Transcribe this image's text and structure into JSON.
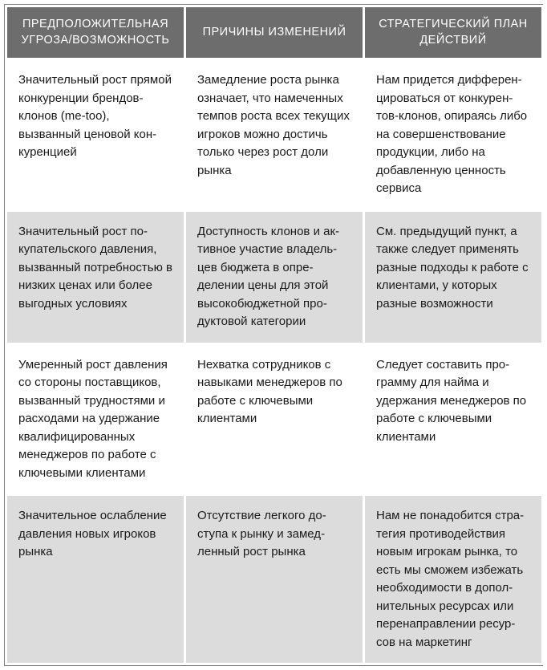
{
  "table": {
    "header_bg": "#6d6d6d",
    "header_fg": "#ffffff",
    "row_alt_bg": "#dcdcdc",
    "row_bg": "#ffffff",
    "text_color": "#1a1a1a",
    "border_color": "#ffffff",
    "header_fontsize": 14.5,
    "cell_fontsize": 15,
    "columns": [
      "ПРЕДПОЛОЖИТЕЛЬНАЯ УГРОЗА/ВОЗМОЖНОСТЬ",
      "ПРИЧИНЫ ИЗМЕНЕНИЙ",
      "СТРАТЕГИЧЕСКИЙ ПЛАН ДЕЙСТВИЙ"
    ],
    "rows": [
      {
        "bg": "white",
        "cells": [
          "Значительный рост пря­мой конкуренции брен­дов-клонов (me-too), вызванный ценовой кон­куренцией",
          "Замедление роста рынка означает, что намеченных темпов роста всех теку­щих игроков можно до­стичь только через рост доли рынка",
          "Нам придется дифферен­цироваться от конкурен­тов-клонов, опираясь либо на совершенствова­ние продукции, либо на добавленную ценность сервиса"
        ]
      },
      {
        "bg": "gray",
        "cells": [
          "Значительный рост по­купательского давления, вызванный потребностью в низких ценах или более выгодных условиях",
          "Доступность клонов и ак­тивное участие владель­цев бюджета в опре­делении цены для этой высокобюджетной про­дуктовой категории",
          "См. предыдущий пункт, а также следует при­менять разные подходы к работе с клиентами, у которых разные воз­можности"
        ]
      },
      {
        "bg": "white",
        "cells": [
          "Умеренный рост давления со стороны поставщиков, вызванный трудностями и расходами на удержа­ние квалифицированных менеджеров по работе с ключевыми клиентами",
          "Нехватка сотрудников с навыками менеджеров по работе с ключевыми клиентами",
          "Следует составить про­грамму для найма и удержания менеджеров по работе с ключевыми клиентами"
        ]
      },
      {
        "bg": "gray",
        "cells": [
          "Значительное ослабление давления новых игроков рынка",
          "Отсутствие легкого до­ступа к рынку и замед­ленный рост рынка",
          "Нам не понадобится стра­тегия противодействия новым игрокам рынка, то есть мы сможем избежать необходимости в допол­нительных ресурсах или перенаправлении ресур­сов на маркетинг"
        ]
      }
    ]
  }
}
